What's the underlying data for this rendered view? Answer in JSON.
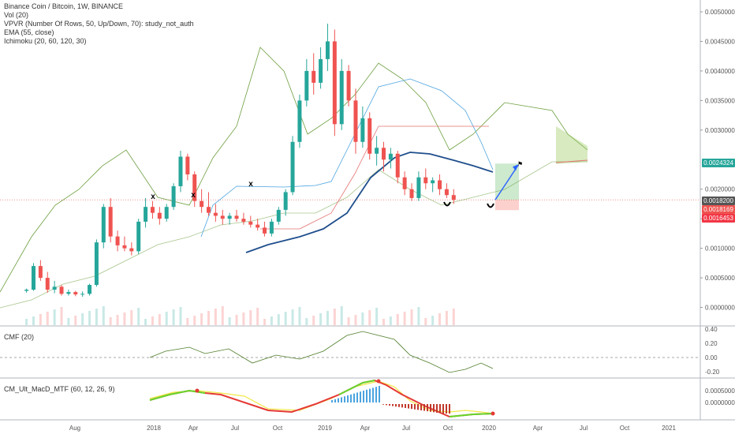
{
  "main": {
    "legend": [
      "Binance Coin / Bitcoin, 1W, BINANCE",
      "Vol (20)",
      "VPVR (Number Of Rows, 50, Up/Down, 70): study_not_auth",
      "EMA (55, close)",
      "Ichimoku (20, 60, 120, 30)"
    ],
    "price_ticks": [
      "0.0050000",
      "0.0045000",
      "0.0040000",
      "0.0035000",
      "0.0030000",
      "0.0020000",
      "0.0015000",
      "0.0010000",
      "0.0005000",
      "0.0000000"
    ],
    "price_labels": [
      {
        "text": "0.0024324",
        "color": "#26a69a"
      },
      {
        "text": "0.0018200",
        "color": "#555555"
      },
      {
        "text": "0.0018169",
        "color": "#ef5350"
      },
      {
        "text": "0.0016453",
        "color": "#f23645"
      }
    ],
    "annotations": {
      "x_marks": [
        "x",
        "x",
        "x"
      ],
      "bottoms": [
        "U",
        "U"
      ],
      "flag": "flag-icon"
    }
  },
  "cmf": {
    "title": "CMF (20)",
    "ticks": [
      "0.40",
      "0.20",
      "0.00",
      "-0.20"
    ]
  },
  "macd": {
    "title": "CM_Ult_MacD_MTF (60, 12, 26, 9)",
    "ticks": [
      "0.0005000",
      "0.0000000"
    ]
  },
  "time_axis": [
    "Aug",
    "2018",
    "Apr",
    "Jul",
    "Oct",
    "2019",
    "Apr",
    "Jul",
    "Oct",
    "2020",
    "Apr",
    "Jul",
    "Oct",
    "2021"
  ],
  "colors": {
    "up": "#26a69a",
    "down": "#ef5350",
    "ema": "#1f4e8c",
    "senkou": "#6b9e3e",
    "tenkan": "#4aa3df",
    "kijun": "#e57373",
    "cmf": "#4f7d2a",
    "macd_up": "#66d62b",
    "macd_down": "#e53935",
    "signal": "#f2e84a"
  },
  "chart_data": {
    "type": "candlestick",
    "symbol": "Binance Coin / Bitcoin, 1W, BINANCE",
    "ylim": [
      -0.0003,
      0.0052
    ],
    "candles": [
      {
        "x": "2017-07-24",
        "o": 0.00028,
        "h": 0.00032,
        "l": 0.00025,
        "c": 0.0003
      },
      {
        "x": "2017-08-07",
        "o": 0.0003,
        "h": 0.00075,
        "l": 0.00028,
        "c": 0.0007
      },
      {
        "x": "2017-08-21",
        "o": 0.0007,
        "h": 0.0008,
        "l": 0.00045,
        "c": 0.0005
      },
      {
        "x": "2017-09-04",
        "o": 0.0005,
        "h": 0.0006,
        "l": 0.00025,
        "c": 0.0003
      },
      {
        "x": "2017-09-18",
        "o": 0.0003,
        "h": 0.00045,
        "l": 0.00024,
        "c": 0.00035
      },
      {
        "x": "2017-10-02",
        "o": 0.00035,
        "h": 0.00038,
        "l": 0.0002,
        "c": 0.00023
      },
      {
        "x": "2017-10-16",
        "o": 0.00023,
        "h": 0.0003,
        "l": 0.0002,
        "c": 0.00026
      },
      {
        "x": "2017-10-30",
        "o": 0.00026,
        "h": 0.00028,
        "l": 0.00019,
        "c": 0.00022
      },
      {
        "x": "2017-11-13",
        "o": 0.00022,
        "h": 0.00027,
        "l": 0.00018,
        "c": 0.00023
      },
      {
        "x": "2017-11-27",
        "o": 0.00023,
        "h": 0.0004,
        "l": 0.0002,
        "c": 0.00038
      },
      {
        "x": "2017-12-11",
        "o": 0.00038,
        "h": 0.00115,
        "l": 0.00035,
        "c": 0.0011
      },
      {
        "x": "2017-12-25",
        "o": 0.0011,
        "h": 0.00175,
        "l": 0.001,
        "c": 0.0017
      },
      {
        "x": "2018-01-08",
        "o": 0.0017,
        "h": 0.00185,
        "l": 0.0011,
        "c": 0.0012
      },
      {
        "x": "2018-01-22",
        "o": 0.0012,
        "h": 0.0013,
        "l": 0.00095,
        "c": 0.00105
      },
      {
        "x": "2018-02-05",
        "o": 0.00105,
        "h": 0.0012,
        "l": 0.00095,
        "c": 0.001
      },
      {
        "x": "2018-02-19",
        "o": 0.001,
        "h": 0.0011,
        "l": 0.00088,
        "c": 0.00095
      },
      {
        "x": "2018-03-05",
        "o": 0.00095,
        "h": 0.0015,
        "l": 0.0009,
        "c": 0.00145
      },
      {
        "x": "2018-03-19",
        "o": 0.00145,
        "h": 0.00185,
        "l": 0.00135,
        "c": 0.0017
      },
      {
        "x": "2018-04-02",
        "o": 0.0017,
        "h": 0.0018,
        "l": 0.0015,
        "c": 0.0016
      },
      {
        "x": "2018-04-16",
        "o": 0.0016,
        "h": 0.0017,
        "l": 0.0014,
        "c": 0.0015
      },
      {
        "x": "2018-04-30",
        "o": 0.0015,
        "h": 0.00175,
        "l": 0.00145,
        "c": 0.0017
      },
      {
        "x": "2018-05-14",
        "o": 0.0017,
        "h": 0.0021,
        "l": 0.00165,
        "c": 0.00205
      },
      {
        "x": "2018-05-28",
        "o": 0.00205,
        "h": 0.00265,
        "l": 0.00195,
        "c": 0.00255
      },
      {
        "x": "2018-06-11",
        "o": 0.00255,
        "h": 0.0026,
        "l": 0.00215,
        "c": 0.00225
      },
      {
        "x": "2018-06-25",
        "o": 0.00225,
        "h": 0.0023,
        "l": 0.0017,
        "c": 0.0018
      },
      {
        "x": "2018-07-09",
        "o": 0.0018,
        "h": 0.002,
        "l": 0.0016,
        "c": 0.0017
      },
      {
        "x": "2018-07-23",
        "o": 0.0017,
        "h": 0.00195,
        "l": 0.00155,
        "c": 0.0016
      },
      {
        "x": "2018-08-06",
        "o": 0.0016,
        "h": 0.00175,
        "l": 0.00145,
        "c": 0.00155
      },
      {
        "x": "2018-08-20",
        "o": 0.00155,
        "h": 0.00165,
        "l": 0.0014,
        "c": 0.0015
      },
      {
        "x": "2018-09-03",
        "o": 0.0015,
        "h": 0.0016,
        "l": 0.0014,
        "c": 0.00155
      },
      {
        "x": "2018-09-17",
        "o": 0.00155,
        "h": 0.00165,
        "l": 0.00145,
        "c": 0.0015
      },
      {
        "x": "2018-10-01",
        "o": 0.0015,
        "h": 0.0016,
        "l": 0.0014,
        "c": 0.00145
      },
      {
        "x": "2018-10-15",
        "o": 0.00145,
        "h": 0.00155,
        "l": 0.00135,
        "c": 0.0014
      },
      {
        "x": "2018-10-29",
        "o": 0.0014,
        "h": 0.0015,
        "l": 0.0013,
        "c": 0.00135
      },
      {
        "x": "2018-11-12",
        "o": 0.00135,
        "h": 0.00145,
        "l": 0.0012,
        "c": 0.00125
      },
      {
        "x": "2018-11-26",
        "o": 0.00125,
        "h": 0.0015,
        "l": 0.0012,
        "c": 0.00145
      },
      {
        "x": "2018-12-10",
        "o": 0.00145,
        "h": 0.0017,
        "l": 0.0014,
        "c": 0.00165
      },
      {
        "x": "2018-12-24",
        "o": 0.00165,
        "h": 0.002,
        "l": 0.00155,
        "c": 0.00195
      },
      {
        "x": "2019-01-07",
        "o": 0.00195,
        "h": 0.0029,
        "l": 0.0019,
        "c": 0.0028
      },
      {
        "x": "2019-01-21",
        "o": 0.0028,
        "h": 0.0036,
        "l": 0.0027,
        "c": 0.0035
      },
      {
        "x": "2019-02-04",
        "o": 0.0035,
        "h": 0.0042,
        "l": 0.0034,
        "c": 0.004
      },
      {
        "x": "2019-02-18",
        "o": 0.004,
        "h": 0.0043,
        "l": 0.0036,
        "c": 0.0038
      },
      {
        "x": "2019-03-04",
        "o": 0.0038,
        "h": 0.0044,
        "l": 0.0037,
        "c": 0.0042
      },
      {
        "x": "2019-03-18",
        "o": 0.0042,
        "h": 0.0048,
        "l": 0.004,
        "c": 0.0045
      },
      {
        "x": "2019-04-01",
        "o": 0.0045,
        "h": 0.0047,
        "l": 0.0029,
        "c": 0.0031
      },
      {
        "x": "2019-04-15",
        "o": 0.0031,
        "h": 0.0042,
        "l": 0.003,
        "c": 0.004
      },
      {
        "x": "2019-04-29",
        "o": 0.004,
        "h": 0.0041,
        "l": 0.0034,
        "c": 0.0035
      },
      {
        "x": "2019-05-13",
        "o": 0.0035,
        "h": 0.0037,
        "l": 0.0026,
        "c": 0.0028
      },
      {
        "x": "2019-05-27",
        "o": 0.0028,
        "h": 0.0034,
        "l": 0.0027,
        "c": 0.0032
      },
      {
        "x": "2019-06-10",
        "o": 0.0032,
        "h": 0.0033,
        "l": 0.0025,
        "c": 0.0026
      },
      {
        "x": "2019-06-24",
        "o": 0.0026,
        "h": 0.0029,
        "l": 0.0024,
        "c": 0.0027
      },
      {
        "x": "2019-07-08",
        "o": 0.0027,
        "h": 0.0028,
        "l": 0.0023,
        "c": 0.0025
      },
      {
        "x": "2019-07-22",
        "o": 0.0025,
        "h": 0.0027,
        "l": 0.00235,
        "c": 0.0026
      },
      {
        "x": "2019-08-05",
        "o": 0.0026,
        "h": 0.00265,
        "l": 0.0021,
        "c": 0.0022
      },
      {
        "x": "2019-08-19",
        "o": 0.0022,
        "h": 0.0023,
        "l": 0.0019,
        "c": 0.002
      },
      {
        "x": "2019-09-02",
        "o": 0.002,
        "h": 0.0021,
        "l": 0.0018,
        "c": 0.00185
      },
      {
        "x": "2019-09-16",
        "o": 0.00185,
        "h": 0.0023,
        "l": 0.0018,
        "c": 0.0022
      },
      {
        "x": "2019-09-30",
        "o": 0.0022,
        "h": 0.00235,
        "l": 0.002,
        "c": 0.0021
      },
      {
        "x": "2019-10-14",
        "o": 0.0021,
        "h": 0.0022,
        "l": 0.00195,
        "c": 0.00215
      },
      {
        "x": "2019-10-28",
        "o": 0.00215,
        "h": 0.00225,
        "l": 0.0019,
        "c": 0.002
      },
      {
        "x": "2019-11-11",
        "o": 0.002,
        "h": 0.0021,
        "l": 0.00185,
        "c": 0.0019
      },
      {
        "x": "2019-11-25",
        "o": 0.0019,
        "h": 0.002,
        "l": 0.00175,
        "c": 0.00182
      }
    ],
    "projection": {
      "entry": 0.00182,
      "target": 0.0024324,
      "stop": 0.0016453
    }
  }
}
